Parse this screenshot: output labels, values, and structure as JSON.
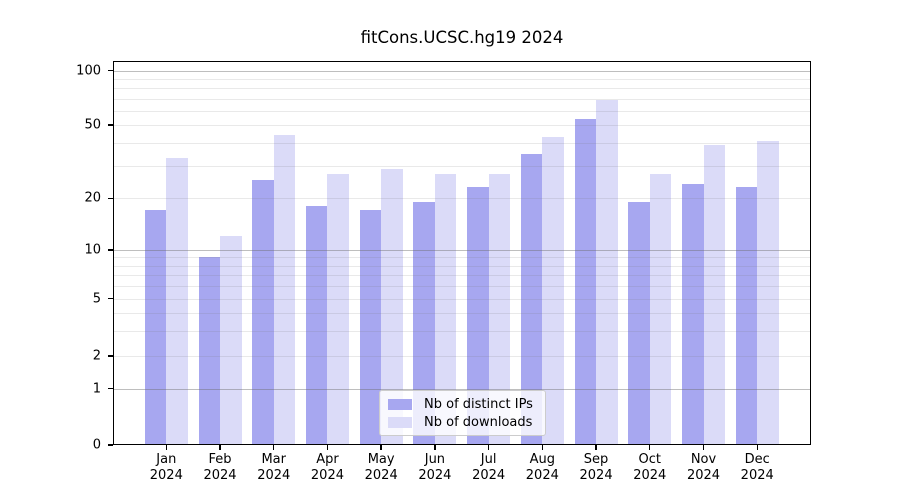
{
  "title": "fitCons.UCSC.hg19 2024",
  "colors": {
    "distinct_ips": "#a7a7f0",
    "downloads": "#dbdbf8",
    "major_gridline": "#b3b3b3",
    "minor_gridline": "#e8e8e8",
    "axis": "#000000"
  },
  "legend": {
    "items": [
      {
        "label": "Nb of distinct IPs",
        "series": "distinct_ips"
      },
      {
        "label": "Nb of downloads",
        "series": "downloads"
      }
    ],
    "position": "lower center"
  },
  "y_axis": {
    "tick_labels": [
      "0",
      "1",
      "2",
      "5",
      "10",
      "20",
      "50",
      "100"
    ],
    "tick_values": [
      0,
      1,
      2,
      5,
      10,
      20,
      50,
      100
    ],
    "major_gridlines": [
      1,
      10,
      100
    ],
    "minor_gridlines": [
      2,
      3,
      4,
      5,
      6,
      7,
      8,
      9,
      20,
      30,
      40,
      50,
      60,
      70,
      80,
      90
    ]
  },
  "x_axis": {
    "months": [
      "Jan",
      "Feb",
      "Mar",
      "Apr",
      "May",
      "Jun",
      "Jul",
      "Aug",
      "Sep",
      "Oct",
      "Nov",
      "Dec"
    ],
    "year": "2024"
  },
  "chart_data": {
    "type": "bar",
    "title": "fitCons.UCSC.hg19 2024",
    "categories": [
      "Jan 2024",
      "Feb 2024",
      "Mar 2024",
      "Apr 2024",
      "May 2024",
      "Jun 2024",
      "Jul 2024",
      "Aug 2024",
      "Sep 2024",
      "Oct 2024",
      "Nov 2024",
      "Dec 2024"
    ],
    "series": [
      {
        "name": "Nb of distinct IPs",
        "color": "#a7a7f0",
        "values": [
          17,
          9,
          25,
          18,
          17,
          19,
          23,
          35,
          54,
          19,
          24,
          23
        ]
      },
      {
        "name": "Nb of downloads",
        "color": "#dbdbf8",
        "values": [
          33,
          12,
          44,
          27,
          29,
          27,
          27,
          43,
          69,
          27,
          39,
          41
        ]
      }
    ],
    "xlabel": "",
    "ylabel": "",
    "yscale": "log-like",
    "y_ticks": [
      0,
      1,
      2,
      5,
      10,
      20,
      50,
      100
    ],
    "ylim": [
      0,
      113
    ],
    "grid": true,
    "legend_position": "lower center"
  }
}
